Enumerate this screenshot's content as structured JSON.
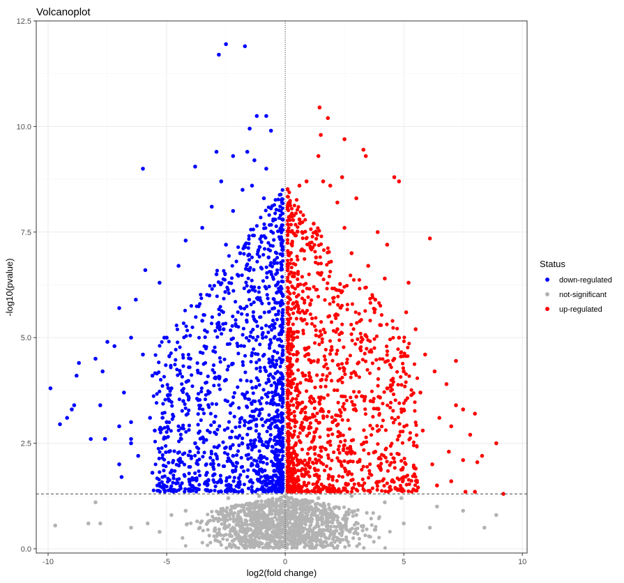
{
  "chart_data": {
    "type": "scatter",
    "title": "Volcanoplot",
    "xlabel": "log2(fold change)",
    "ylabel": "-log10(pvalue)",
    "xlim": [
      -10.5,
      10.2
    ],
    "ylim": [
      -0.1,
      12.5
    ],
    "x_ticks": [
      -10,
      -5,
      0,
      5,
      10
    ],
    "y_ticks": [
      0.0,
      2.5,
      5.0,
      7.5,
      10.0,
      12.5
    ],
    "x_tick_labels": [
      "-10",
      "-5",
      "0",
      "5",
      "10"
    ],
    "y_tick_labels": [
      "0.0",
      "2.5",
      "5.0",
      "7.5",
      "10.0",
      "12.5"
    ],
    "grid": true,
    "threshold_lines": {
      "pvalue_y": 1.3,
      "fold_change_x": 0
    },
    "legend": {
      "title": "Status",
      "position": "right",
      "entries": [
        {
          "label": "down-regulated",
          "color": "#0000ff"
        },
        {
          "label": "not-significant",
          "color": "#b3b3b3"
        },
        {
          "label": "up-regulated",
          "color": "#ff0000"
        }
      ]
    },
    "series": [
      {
        "name": "down-regulated",
        "color": "#0000ff",
        "points": [
          [
            -2.8,
            11.7
          ],
          [
            -2.5,
            11.95
          ],
          [
            -1.7,
            11.9
          ],
          [
            -1.2,
            10.25
          ],
          [
            -0.8,
            10.25
          ],
          [
            -0.6,
            9.9
          ],
          [
            -1.5,
            9.95
          ],
          [
            -2.9,
            9.4
          ],
          [
            -2.2,
            9.3
          ],
          [
            -1.6,
            9.4
          ],
          [
            -6.0,
            9.0
          ],
          [
            -3.8,
            9.05
          ],
          [
            -2.7,
            8.7
          ],
          [
            -1.3,
            9.2
          ],
          [
            -0.8,
            9.0
          ],
          [
            -1.8,
            8.5
          ],
          [
            -1.4,
            8.6
          ],
          [
            -2.2,
            8.0
          ],
          [
            -3.1,
            8.1
          ],
          [
            -0.9,
            8.3
          ],
          [
            -0.5,
            7.8
          ],
          [
            -1.0,
            7.4
          ],
          [
            -4.2,
            7.3
          ],
          [
            -3.5,
            7.6
          ],
          [
            -2.5,
            7.2
          ],
          [
            -1.9,
            7.0
          ],
          [
            -4.5,
            6.7
          ],
          [
            -5.9,
            6.6
          ],
          [
            -5.3,
            6.3
          ],
          [
            -2.9,
            6.5
          ],
          [
            -0.7,
            6.9
          ],
          [
            -7.0,
            5.7
          ],
          [
            -6.3,
            5.9
          ],
          [
            -5.0,
            5.0
          ],
          [
            -5.1,
            5.0
          ],
          [
            -6.5,
            5.0
          ],
          [
            -7.5,
            4.9
          ],
          [
            -8.0,
            4.5
          ],
          [
            -8.7,
            4.4
          ],
          [
            -8.8,
            4.1
          ],
          [
            -7.7,
            4.2
          ],
          [
            -7.2,
            4.8
          ],
          [
            -6.0,
            4.6
          ],
          [
            -5.6,
            4.1
          ],
          [
            -4.8,
            3.8
          ],
          [
            -4.3,
            3.5
          ],
          [
            -9.9,
            3.8
          ],
          [
            -8.9,
            3.4
          ],
          [
            -9.0,
            3.3
          ],
          [
            -9.5,
            2.95
          ],
          [
            -9.2,
            3.1
          ],
          [
            -7.8,
            3.4
          ],
          [
            -6.8,
            3.7
          ],
          [
            -6.5,
            3.0
          ],
          [
            -5.7,
            3.1
          ],
          [
            -5.0,
            3.0
          ],
          [
            -7.0,
            2.9
          ],
          [
            -6.5,
            2.6
          ],
          [
            -8.2,
            2.6
          ],
          [
            -7.6,
            2.6
          ],
          [
            -7.0,
            2.0
          ],
          [
            -6.5,
            2.5
          ],
          [
            -6.2,
            2.2
          ],
          [
            -5.5,
            2.8
          ],
          [
            -4.9,
            2.3
          ],
          [
            -4.5,
            2.1
          ],
          [
            -3.8,
            2.5
          ],
          [
            -3.3,
            1.8
          ],
          [
            -5.6,
            1.8
          ],
          [
            -6.9,
            1.7
          ],
          [
            -4.6,
            1.55
          ],
          [
            -2.7,
            1.6
          ],
          [
            -2.2,
            2.2
          ],
          [
            -3.0,
            3.0
          ],
          [
            -2.5,
            4.0
          ],
          [
            -3.5,
            5.4
          ],
          [
            -4.0,
            4.5
          ],
          [
            -3.2,
            6.0
          ],
          [
            -2.6,
            5.2
          ],
          [
            -2.0,
            4.8
          ],
          [
            -2.3,
            3.4
          ]
        ]
      },
      {
        "name": "up-regulated",
        "color": "#ff0000",
        "points": [
          [
            1.45,
            10.45
          ],
          [
            1.8,
            10.2
          ],
          [
            1.5,
            9.8
          ],
          [
            1.4,
            9.3
          ],
          [
            2.5,
            9.7
          ],
          [
            3.3,
            9.45
          ],
          [
            3.4,
            9.3
          ],
          [
            4.6,
            8.8
          ],
          [
            4.8,
            8.7
          ],
          [
            2.4,
            8.8
          ],
          [
            1.6,
            8.7
          ],
          [
            0.6,
            8.6
          ],
          [
            0.9,
            8.7
          ],
          [
            1.9,
            8.6
          ],
          [
            3.0,
            8.3
          ],
          [
            2.2,
            8.2
          ],
          [
            0.6,
            7.8
          ],
          [
            1.2,
            7.7
          ],
          [
            2.5,
            7.6
          ],
          [
            3.9,
            7.5
          ],
          [
            6.1,
            7.35
          ],
          [
            4.3,
            7.2
          ],
          [
            2.8,
            7.0
          ],
          [
            1.3,
            6.9
          ],
          [
            3.5,
            6.7
          ],
          [
            4.2,
            6.4
          ],
          [
            5.2,
            6.3
          ],
          [
            3.8,
            5.9
          ],
          [
            2.4,
            6.1
          ],
          [
            5.1,
            5.6
          ],
          [
            4.0,
            5.3
          ],
          [
            4.8,
            5.0
          ],
          [
            5.5,
            5.2
          ],
          [
            3.2,
            4.9
          ],
          [
            2.2,
            5.2
          ],
          [
            7.2,
            4.45
          ],
          [
            5.9,
            4.6
          ],
          [
            6.3,
            4.2
          ],
          [
            4.6,
            4.5
          ],
          [
            5.0,
            4.2
          ],
          [
            6.8,
            3.9
          ],
          [
            5.7,
            3.7
          ],
          [
            4.3,
            3.8
          ],
          [
            3.6,
            3.5
          ],
          [
            7.2,
            3.4
          ],
          [
            7.5,
            3.3
          ],
          [
            8.0,
            3.2
          ],
          [
            7.0,
            2.9
          ],
          [
            6.5,
            3.1
          ],
          [
            5.8,
            2.8
          ],
          [
            7.8,
            2.7
          ],
          [
            8.9,
            2.5
          ],
          [
            8.3,
            2.2
          ],
          [
            8.1,
            2.05
          ],
          [
            7.5,
            2.1
          ],
          [
            6.9,
            2.3
          ],
          [
            6.2,
            2.0
          ],
          [
            5.5,
            1.9
          ],
          [
            5.0,
            1.7
          ],
          [
            4.5,
            1.6
          ],
          [
            7.0,
            1.6
          ],
          [
            7.6,
            1.35
          ],
          [
            8.0,
            1.35
          ],
          [
            6.4,
            1.5
          ],
          [
            5.6,
            1.45
          ],
          [
            9.2,
            1.3
          ],
          [
            3.8,
            2.3
          ],
          [
            3.0,
            3.6
          ],
          [
            2.6,
            4.4
          ],
          [
            2.0,
            3.0
          ]
        ]
      },
      {
        "name": "not-significant",
        "color": "#b3b3b3",
        "points": [
          [
            -9.7,
            0.55
          ],
          [
            -8.0,
            1.1
          ],
          [
            -7.8,
            0.6
          ],
          [
            -8.3,
            0.6
          ],
          [
            -6.5,
            0.5
          ],
          [
            -5.8,
            0.6
          ],
          [
            -5.3,
            0.4
          ],
          [
            -4.8,
            0.8
          ],
          [
            -4.2,
            0.9
          ],
          [
            -3.6,
            0.5
          ],
          [
            -3.0,
            0.7
          ],
          [
            -2.6,
            0.9
          ],
          [
            -2.0,
            0.6
          ],
          [
            -1.5,
            0.3
          ],
          [
            -1.0,
            0.8
          ],
          [
            -0.5,
            0.2
          ],
          [
            0.0,
            0.05
          ],
          [
            0.5,
            0.4
          ],
          [
            1.0,
            0.7
          ],
          [
            1.6,
            0.9
          ],
          [
            2.3,
            0.6
          ],
          [
            3.0,
            0.8
          ],
          [
            3.8,
            0.45
          ],
          [
            4.2,
            1.1
          ],
          [
            5.0,
            0.6
          ],
          [
            6.1,
            0.5
          ],
          [
            6.4,
            1.0
          ],
          [
            7.5,
            0.9
          ],
          [
            8.4,
            0.5
          ],
          [
            8.9,
            0.8
          ],
          [
            -1.1,
            1.25
          ],
          [
            -2.4,
            1.2
          ],
          [
            1.4,
            1.2
          ],
          [
            2.8,
            1.25
          ],
          [
            4.9,
            1.2
          ]
        ]
      }
    ]
  }
}
